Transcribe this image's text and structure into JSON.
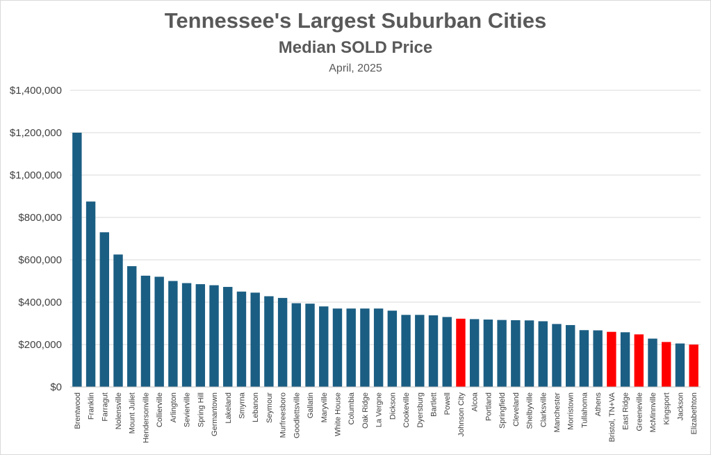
{
  "chart_data": {
    "type": "bar",
    "title": "Tennessee's Largest Suburban Cities",
    "subtitle": "Median SOLD Price",
    "date_label": "April, 2025",
    "xlabel": "",
    "ylabel": "",
    "ylim": [
      0,
      1400000
    ],
    "ytick_values": [
      0,
      200000,
      400000,
      600000,
      800000,
      1000000,
      1200000,
      1400000
    ],
    "ytick_labels": [
      "$0",
      "$200,000",
      "$400,000",
      "$600,000",
      "$800,000",
      "$1,000,000",
      "$1,200,000",
      "$1,400,000"
    ],
    "grid": true,
    "default_color": "#1b5e83",
    "highlight_color": "#ff0000",
    "categories": [
      "Brentwood",
      "Franklin",
      "Farragut",
      "Nolensville",
      "Mount Juliet",
      "Hendersonville",
      "Collierville",
      "Arlington",
      "Sevierville",
      "Spring Hill",
      "Germantown",
      "Lakeland",
      "Smyrna",
      "Lebanon",
      "Seymour",
      "Murfreesboro",
      "Goodlettsville",
      "Gallatin",
      "Maryville",
      "White House",
      "Columbia",
      "Oak Ridge",
      "La Vergne",
      "Dickson",
      "Cookeville",
      "Dyersburg",
      "Bartlett",
      "Powell",
      "Johnson City",
      "Alcoa",
      "Portland",
      "Springfield",
      "Cleveland",
      "Shelbyville",
      "Clarksville",
      "Manchester",
      "Morristown",
      "Tullahoma",
      "Athens",
      "Bristol, TN+VA",
      "East Ridge",
      "Greeneville",
      "McMinnville",
      "Kingsport",
      "Jackson",
      "Elizabethton"
    ],
    "values": [
      1200000,
      875000,
      730000,
      625000,
      570000,
      525000,
      520000,
      500000,
      490000,
      485000,
      480000,
      472000,
      450000,
      445000,
      428000,
      420000,
      395000,
      393000,
      380000,
      370000,
      370000,
      370000,
      370000,
      360000,
      340000,
      340000,
      338000,
      330000,
      322000,
      320000,
      318000,
      316000,
      315000,
      314000,
      310000,
      297000,
      292000,
      268000,
      267000,
      260000,
      258000,
      248000,
      228000,
      212000,
      205000,
      200000
    ],
    "highlighted": [
      "Johnson City",
      "Bristol, TN+VA",
      "Greeneville",
      "Kingsport",
      "Elizabethton"
    ]
  }
}
